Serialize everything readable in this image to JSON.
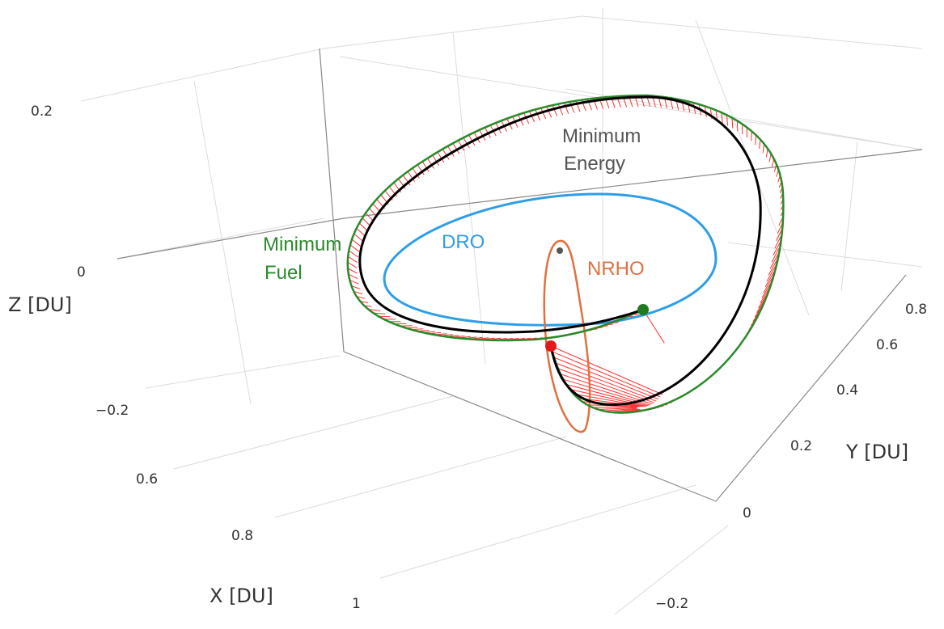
{
  "chart_data": {
    "type": "line",
    "projection": "3d",
    "grid": true,
    "legend": "none",
    "axes": {
      "x": {
        "label": "X [DU]",
        "ticks": [
          "0.6",
          "0.8",
          "1"
        ]
      },
      "y": {
        "label": "Y [DU]",
        "ticks": [
          "0.8",
          "0.6",
          "0.4",
          "0.2",
          "0",
          "−0.2"
        ]
      },
      "z": {
        "label": "Z [DU]",
        "ticks": [
          "0.2",
          "0",
          "−0.2"
        ]
      }
    },
    "annotations": {
      "min_energy": [
        "Minimum",
        "Energy"
      ],
      "min_fuel": [
        "Minimum",
        "Fuel"
      ],
      "dro": "DRO",
      "nrho": "NRHO"
    },
    "series": [
      {
        "key": "dro",
        "color": "#2e9ee8"
      },
      {
        "key": "nrho",
        "color": "#e07040"
      },
      {
        "key": "min_energy",
        "color": "#000000"
      },
      {
        "key": "min_fuel",
        "color": "#2a8a2a"
      },
      {
        "key": "thrust_vectors",
        "color": "#ff3030"
      }
    ],
    "markers": [
      {
        "key": "departure",
        "color": "#e31a1c"
      },
      {
        "key": "arrival",
        "color": "#1f7a1f"
      },
      {
        "key": "moon",
        "color": "#555555"
      }
    ]
  }
}
